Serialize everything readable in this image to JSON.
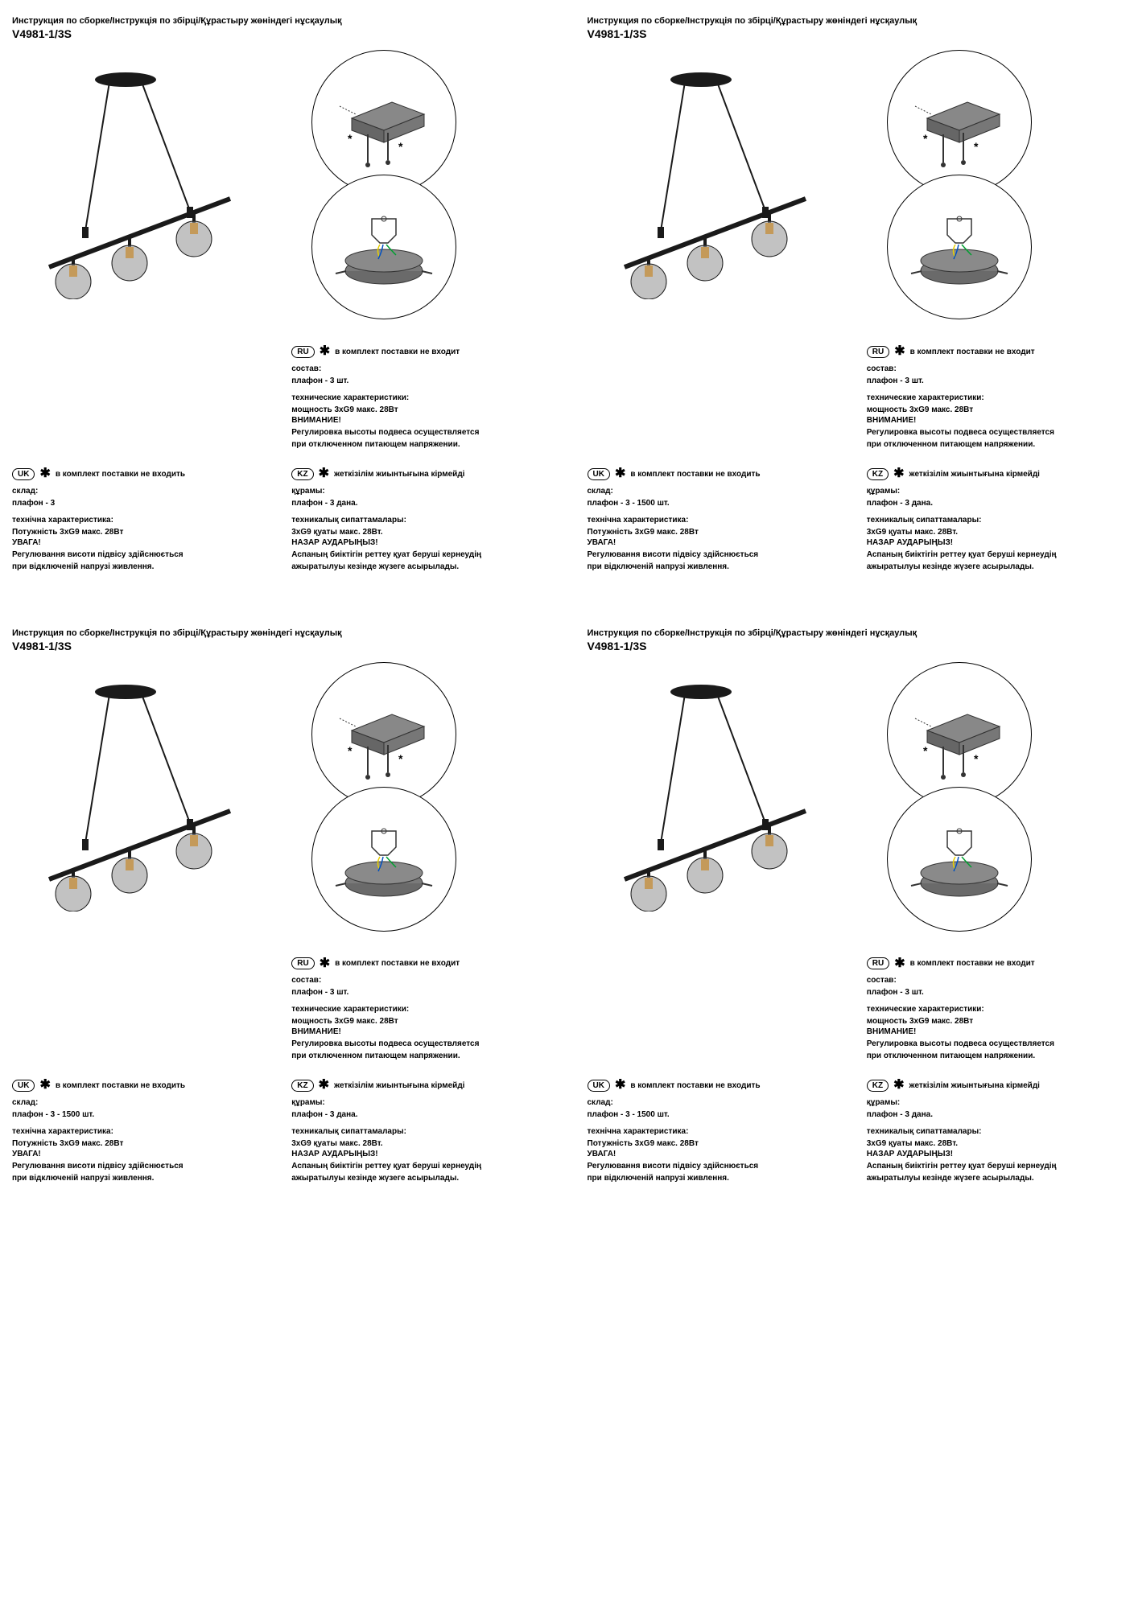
{
  "pages": [
    {
      "title": "Инструкция по сборке/Інструкція по збірці/Құрастыру жөніндегі нұсқаулық",
      "model": "V4981-1/3S",
      "uk_plafon": "плафон - 3"
    },
    {
      "title": "Инструкция по сборке/Інструкція по збірці/Құрастыру жөніндегі нұсқаулық",
      "model": "V4981-1/3S",
      "uk_plafon": "плафон - 3 - 1500 шт."
    },
    {
      "title": "Инструкция по сборке/Інструкція по збірці/Құрастыру жөніндегі нұсқаулық",
      "model": "V4981-1/3S",
      "uk_plafon": "плафон - 3 - 1500 шт."
    },
    {
      "title": "Инструкция по сборке/Інструкція по збірці/Құрастыру жөніндегі нұсқаулық",
      "model": "V4981-1/3S",
      "uk_plafon": "плафон - 3 - 1500 шт."
    }
  ],
  "lang": {
    "ru": {
      "code": "RU",
      "not_included": "в комплект поставки не входит",
      "sostav_label": "состав:",
      "sostav_value": "плафон - 3 шт.",
      "tech_label": "технические характеристики:",
      "power": "мощность 3xG9 макс. 28Вт",
      "warn": "ВНИМАНИЕ!",
      "note1": "Регулировка высоты подвеса осуществляется",
      "note2": "при отключенном питающем напряжении."
    },
    "uk": {
      "code": "UK",
      "not_included": "в комплект поставки не входить",
      "sklad_label": "склад:",
      "tech_label": "технічна характеристика:",
      "power": "Потужність 3xG9 макс. 28Вт",
      "warn": "УВАГА!",
      "note1": "Регулювання висоти підвісу здійснюється",
      "note2": "при відключеній напрузі живлення."
    },
    "kz": {
      "code": "KZ",
      "not_included": "жеткізілім жиынтығына кірмейді",
      "kuramy_label": "құрамы:",
      "kuramy_value": "плафон - 3 дана.",
      "tech_label": "техникалық сипаттамалары:",
      "power": "3xG9 қуаты макс. 28Вт.",
      "warn": "НАЗАР АУДАРЫҢЫЗ!",
      "note1": "Аспаның биіктігін реттеу қуат беруші кернеудің",
      "note2": "ажыратылуы кезінде жүзеге асырылады."
    }
  },
  "colors": {
    "text": "#000000",
    "bg": "#ffffff",
    "lamp_dark": "#1a1a1a",
    "glass": "#9a9a9a",
    "bracket": "#888888"
  }
}
